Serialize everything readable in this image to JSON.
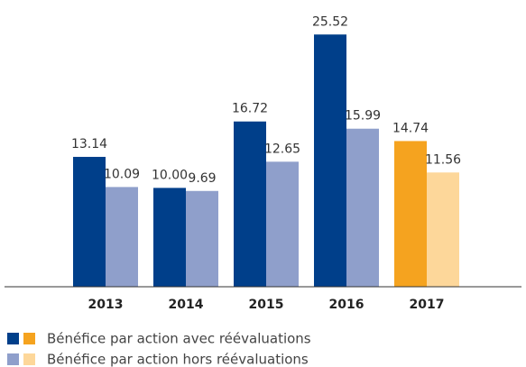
{
  "chart_data": {
    "type": "bar",
    "categories": [
      "2013",
      "2014",
      "2015",
      "2016",
      "2017"
    ],
    "series": [
      {
        "name": "Bénéfice par action avec réévaluations",
        "color": "#003f8a",
        "colors": [
          "#003f8a",
          "#003f8a",
          "#003f8a",
          "#003f8a",
          "#f5a31f"
        ],
        "values": [
          13.14,
          10.0,
          16.72,
          25.52,
          14.74
        ],
        "value_labels": [
          "13.14",
          "10.00",
          "16.72",
          "25.52",
          "14.74"
        ]
      },
      {
        "name": "Bénéfice par action hors réévaluations",
        "color": "#8f9fcb",
        "colors": [
          "#8f9fcb",
          "#8f9fcb",
          "#8f9fcb",
          "#8f9fcb",
          "#fdd79a"
        ],
        "values": [
          10.09,
          9.69,
          12.65,
          15.99,
          11.56
        ],
        "value_labels": [
          "10.09",
          "9.69",
          "12.65",
          "15.99",
          "11.56"
        ]
      }
    ],
    "ylim": [
      0,
      26
    ],
    "grid": false
  }
}
